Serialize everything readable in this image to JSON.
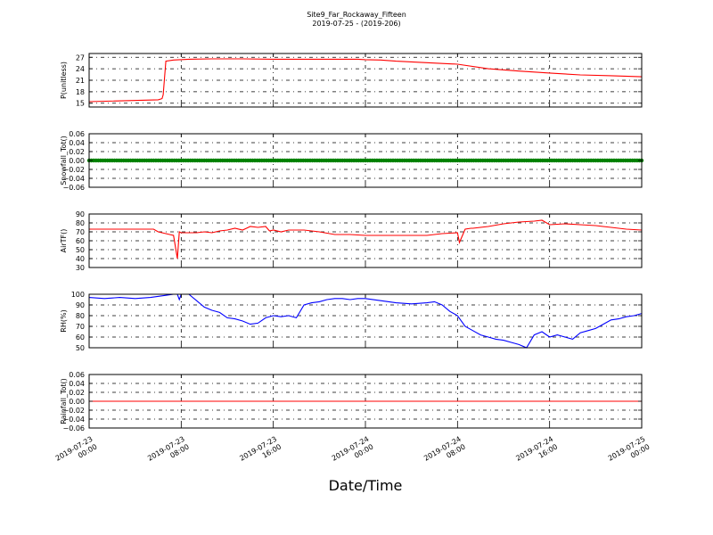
{
  "figure": {
    "title": "Site9_Far_Rockaway_Fifteen",
    "subtitle": "2019-07-25 - (2019-206)",
    "xlabel": "Date/Time"
  },
  "chart_data": [
    {
      "type": "line",
      "ylabel": "P(unitless)",
      "ylim": [
        14,
        28
      ],
      "yticks": [
        "15",
        "18",
        "21",
        "24",
        "27"
      ],
      "ytick_values": [
        15,
        18,
        21,
        24,
        27
      ],
      "color": "#ff0000",
      "grid": true,
      "x_hours": [
        0,
        18,
        19,
        19.3,
        20,
        22,
        26,
        32,
        40,
        48,
        56,
        60,
        66,
        70,
        72,
        76,
        80,
        88,
        96,
        104,
        112,
        120,
        128,
        136,
        144
      ],
      "values": [
        15.4,
        15.9,
        16.2,
        17.2,
        26.0,
        26.3,
        26.5,
        26.6,
        26.6,
        26.5,
        26.5,
        26.5,
        26.5,
        26.5,
        26.4,
        26.3,
        26.0,
        25.6,
        25.2,
        24.0,
        23.4,
        22.9,
        22.4,
        22.2,
        21.9
      ]
    },
    {
      "type": "scatter",
      "ylabel": "Snowfall_Tot()",
      "ylim": [
        -0.06,
        0.06
      ],
      "yticks": [
        "0.06",
        "0.04",
        "0.02",
        "0.00",
        "−0.02",
        "−0.04",
        "−0.06"
      ],
      "ytick_values": [
        0.06,
        0.04,
        0.02,
        0.0,
        -0.02,
        -0.04,
        -0.06
      ],
      "color": "#008000",
      "grid": true,
      "x_hours_range": [
        0,
        144
      ],
      "value": 0.0
    },
    {
      "type": "line",
      "ylabel": "AirTF()",
      "ylim": [
        30,
        90
      ],
      "yticks": [
        "90",
        "80",
        "70",
        "60",
        "50",
        "40",
        "30"
      ],
      "ytick_values": [
        90,
        80,
        70,
        60,
        50,
        40,
        30
      ],
      "color": "#ff0000",
      "grid": true,
      "x_hours": [
        0,
        8,
        16,
        16.8,
        18,
        20,
        21,
        22,
        23,
        23.5,
        24,
        26,
        28,
        30,
        32,
        34,
        36,
        38,
        40,
        42,
        44,
        46,
        47,
        48,
        50,
        52,
        56,
        60,
        64,
        68,
        72,
        76,
        80,
        84,
        86,
        88,
        92,
        96,
        96.5,
        98,
        99.5,
        100,
        104,
        108,
        112,
        116,
        118,
        120,
        124,
        128,
        132,
        136,
        140,
        144
      ],
      "values": [
        73,
        73,
        73,
        73,
        70,
        68,
        67,
        66,
        40,
        70,
        69,
        69,
        69,
        70,
        69,
        71,
        72,
        74,
        72,
        76,
        75,
        76,
        71,
        72,
        70,
        72,
        72,
        70,
        67,
        67,
        66,
        66,
        66,
        66,
        66,
        66,
        68,
        69,
        58,
        73,
        74,
        74,
        76,
        79,
        81,
        82,
        83,
        78,
        79,
        78,
        77,
        75,
        73,
        72
      ]
    },
    {
      "type": "line",
      "ylabel": "RH(%)",
      "ylim": [
        50,
        100
      ],
      "yticks": [
        "100",
        "90",
        "80",
        "70",
        "60",
        "50"
      ],
      "ytick_values": [
        100,
        90,
        80,
        70,
        60,
        50
      ],
      "color": "#0000ff",
      "grid": true,
      "x_hours": [
        0,
        4,
        8,
        12,
        16,
        20,
        22,
        23,
        23.5,
        24,
        26,
        28,
        30,
        32,
        34,
        36,
        38,
        40,
        42,
        44,
        46,
        48,
        50,
        52,
        54,
        56,
        58,
        60,
        62,
        64,
        66,
        68,
        70,
        72,
        76,
        80,
        84,
        88,
        90,
        92,
        94,
        96,
        98,
        100,
        102,
        104,
        106,
        108,
        110,
        112,
        114,
        116,
        118,
        120,
        122,
        124,
        126,
        128,
        130,
        132,
        134,
        136,
        138,
        140,
        142,
        144
      ],
      "values": [
        97,
        96,
        97,
        96,
        97,
        99,
        100,
        100,
        95,
        100,
        100,
        94,
        88,
        85,
        83,
        78,
        77,
        75,
        72,
        73,
        78,
        80,
        79,
        80,
        78,
        90,
        92,
        93,
        95,
        96,
        96,
        95,
        96,
        96,
        94,
        92,
        91,
        92,
        93,
        90,
        84,
        80,
        70,
        66,
        62,
        60,
        58,
        57,
        55,
        53,
        50,
        62,
        65,
        60,
        62,
        60,
        58,
        64,
        66,
        68,
        72,
        76,
        77,
        79,
        80,
        82
      ]
    },
    {
      "type": "line",
      "ylabel": "Rainfall_Tot()",
      "ylim": [
        -0.06,
        0.06
      ],
      "yticks": [
        "0.06",
        "0.04",
        "0.02",
        "0.00",
        "−0.02",
        "−0.04",
        "−0.06"
      ],
      "ytick_values": [
        0.06,
        0.04,
        0.02,
        0.0,
        -0.02,
        -0.04,
        -0.06
      ],
      "color": "#ff0000",
      "grid": true,
      "x_hours": [
        0,
        144
      ],
      "values": [
        0.0,
        0.0
      ]
    }
  ],
  "x_axis": {
    "range_hours": [
      0,
      144
    ],
    "ticks": [
      {
        "hour": 0,
        "line1": "2019-07-23",
        "line2": "00:00"
      },
      {
        "hour": 24,
        "line1": "2019-07-23",
        "line2": "08:00"
      },
      {
        "hour": 48,
        "line1": "2019-07-23",
        "line2": "16:00"
      },
      {
        "hour": 72,
        "line1": "2019-07-24",
        "line2": "00:00"
      },
      {
        "hour": 96,
        "line1": "2019-07-24",
        "line2": "08:00"
      },
      {
        "hour": 120,
        "line1": "2019-07-24",
        "line2": "16:00"
      },
      {
        "hour": 144,
        "line1": "2019-07-25",
        "line2": "00:00"
      }
    ]
  }
}
